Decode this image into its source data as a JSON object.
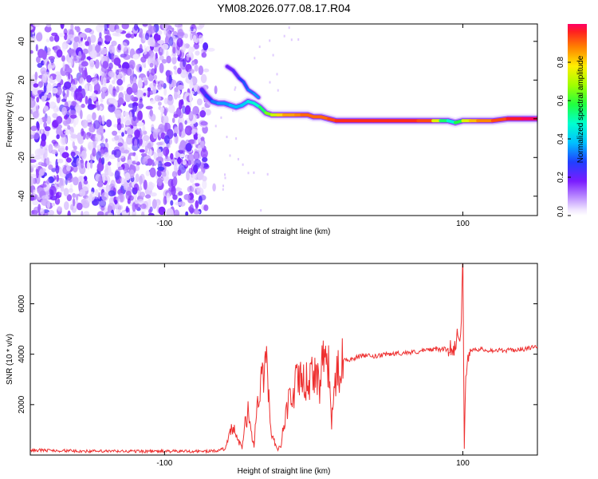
{
  "chart_data": [
    {
      "type": "heatmap",
      "title": "YM08.2026.077.08.17.R04",
      "xlabel": "Height of straight line (km)",
      "ylabel": "Frequency (Hz)",
      "xlim": [
        -190,
        150
      ],
      "ylim": [
        -50,
        49
      ],
      "xticks": [
        -100,
        100
      ],
      "yticks": [
        -40,
        -20,
        0,
        20,
        40
      ],
      "colorbar": {
        "label": "Normalized spectral amplitude",
        "range": [
          0,
          1
        ],
        "ticks": [
          "0.0",
          "0.2",
          "0.4",
          "0.6",
          "0.8"
        ],
        "tick_values": [
          0.0,
          0.2,
          0.4,
          0.6,
          0.8
        ]
      },
      "noise_region_x": [
        -190,
        -72
      ],
      "ridge": {
        "x": [
          -75,
          -72,
          -68,
          -64,
          -60,
          -56,
          -52,
          -48,
          -44,
          -40,
          -36,
          -32,
          -28,
          -24,
          -20,
          -16,
          -12,
          -8,
          -4,
          0,
          5,
          10,
          15,
          20,
          30,
          40,
          50,
          60,
          70,
          80,
          85,
          90,
          95,
          100,
          105,
          110,
          120,
          130,
          140,
          150
        ],
        "freq": [
          15,
          12,
          9,
          8,
          8,
          7,
          6,
          7,
          9,
          8,
          6,
          3,
          2,
          2,
          2,
          2,
          2,
          2,
          2,
          1,
          1,
          0,
          -1,
          -1,
          -1,
          -1,
          -1,
          -1,
          -1,
          -1,
          -1,
          -1,
          -2,
          -1,
          -1,
          -1,
          -1,
          0,
          0,
          0
        ],
        "amp": [
          0.2,
          0.25,
          0.3,
          0.35,
          0.35,
          0.35,
          0.4,
          0.35,
          0.45,
          0.45,
          0.5,
          0.6,
          0.7,
          0.75,
          0.85,
          0.85,
          0.85,
          0.9,
          0.9,
          0.9,
          0.9,
          0.9,
          0.95,
          0.95,
          0.95,
          0.95,
          0.95,
          0.95,
          0.95,
          0.9,
          0.6,
          0.5,
          0.45,
          0.7,
          0.8,
          0.85,
          0.9,
          0.95,
          0.98,
          1.0
        ]
      },
      "secondary_branch": {
        "x": [
          -58,
          -54,
          -50,
          -47,
          -44,
          -40,
          -37
        ],
        "freq": [
          27,
          25,
          21,
          19,
          15,
          13,
          11
        ],
        "amp": [
          0.2,
          0.2,
          0.25,
          0.3,
          0.3,
          0.35,
          0.35
        ]
      }
    },
    {
      "type": "line",
      "title": "",
      "xlabel": "Height of straight line (km)",
      "ylabel": "SNR (10 * v/v)",
      "xlim": [
        -190,
        150
      ],
      "ylim": [
        0,
        7600
      ],
      "xticks": [
        -100,
        100
      ],
      "yticks": [
        2000,
        4000,
        6000
      ],
      "series": [
        {
          "name": "SNR",
          "color": "#ee3030",
          "x": [
            -190,
            -150,
            -110,
            -80,
            -70,
            -65,
            -60,
            -58,
            -56,
            -54,
            -52,
            -50,
            -48,
            -46,
            -44,
            -42,
            -40,
            -38,
            -36,
            -34,
            -32,
            -30,
            -28,
            -26,
            -24,
            -22,
            -20,
            -18,
            -16,
            -14,
            -12,
            -10,
            -8,
            -6,
            -4,
            -2,
            0,
            2,
            4,
            6,
            8,
            10,
            12,
            14,
            16,
            18,
            20,
            25,
            30,
            35,
            40,
            50,
            60,
            70,
            80,
            90,
            95,
            97,
            98,
            99,
            100,
            101,
            102,
            103,
            105,
            110,
            120,
            130,
            140,
            150
          ],
          "y": [
            200,
            150,
            150,
            150,
            150,
            170,
            250,
            450,
            900,
            1100,
            700,
            500,
            300,
            1200,
            1700,
            900,
            400,
            2000,
            2600,
            3100,
            4200,
            2300,
            700,
            500,
            200,
            400,
            1200,
            1800,
            2400,
            2100,
            2900,
            2800,
            3300,
            2600,
            3100,
            2900,
            3300,
            3400,
            2700,
            3600,
            4000,
            3400,
            1200,
            2900,
            3200,
            3500,
            3800,
            3800,
            3900,
            3950,
            3900,
            4000,
            4050,
            4100,
            4200,
            4200,
            4300,
            5000,
            4700,
            5500,
            7700,
            500,
            2800,
            3600,
            4200,
            4200,
            4150,
            4150,
            4200,
            4300
          ]
        }
      ]
    }
  ]
}
